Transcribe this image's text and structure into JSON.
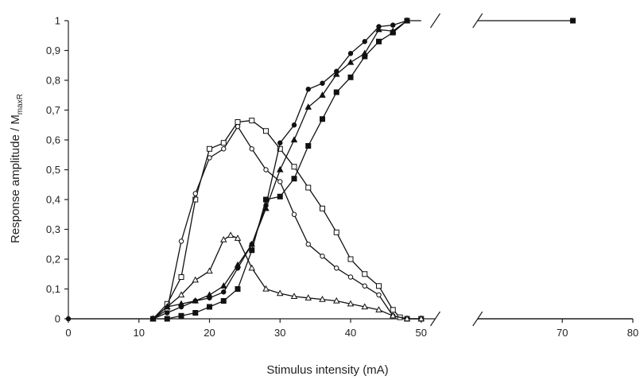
{
  "chart_data": {
    "type": "line",
    "xlabel": "Stimulus intensity (mA)",
    "ylabel_main": "Response amplitude / M",
    "ylabel_sub": "maxR",
    "x_ticks": [
      "0",
      "10",
      "20",
      "30",
      "40",
      "50",
      "70",
      "80"
    ],
    "y_ticks": [
      "0",
      "0,1",
      "0,2",
      "0,3",
      "0,4",
      "0,5",
      "0,6",
      "0,7",
      "0,8",
      "0,9",
      "1"
    ],
    "xlim": [
      0,
      80
    ],
    "ylim": [
      0,
      1
    ],
    "axis_break": [
      52,
      58
    ],
    "grid": false,
    "series": [
      {
        "marker": "open-square",
        "points": [
          [
            12,
            0
          ],
          [
            14,
            0.05
          ],
          [
            16,
            0.14
          ],
          [
            18,
            0.4
          ],
          [
            20,
            0.57
          ],
          [
            22,
            0.59
          ],
          [
            24,
            0.66
          ],
          [
            26,
            0.665
          ],
          [
            28,
            0.63
          ],
          [
            30,
            0.57
          ],
          [
            32,
            0.51
          ],
          [
            34,
            0.44
          ],
          [
            36,
            0.37
          ],
          [
            38,
            0.29
          ],
          [
            40,
            0.2
          ],
          [
            42,
            0.15
          ],
          [
            44,
            0.11
          ],
          [
            46,
            0.03
          ],
          [
            47,
            0.005
          ],
          [
            48,
            0
          ],
          [
            50,
            0
          ]
        ]
      },
      {
        "marker": "open-circle",
        "points": [
          [
            12,
            0
          ],
          [
            14,
            0.03
          ],
          [
            16,
            0.26
          ],
          [
            18,
            0.42
          ],
          [
            20,
            0.54
          ],
          [
            22,
            0.57
          ],
          [
            24,
            0.645
          ],
          [
            26,
            0.57
          ],
          [
            28,
            0.5
          ],
          [
            30,
            0.46
          ],
          [
            32,
            0.35
          ],
          [
            34,
            0.25
          ],
          [
            36,
            0.21
          ],
          [
            38,
            0.17
          ],
          [
            40,
            0.14
          ],
          [
            42,
            0.11
          ],
          [
            44,
            0.08
          ],
          [
            46,
            0.01
          ],
          [
            48,
            0
          ],
          [
            50,
            0
          ]
        ]
      },
      {
        "marker": "open-triangle",
        "points": [
          [
            12,
            0
          ],
          [
            14,
            0.04
          ],
          [
            16,
            0.08
          ],
          [
            18,
            0.13
          ],
          [
            20,
            0.16
          ],
          [
            22,
            0.265
          ],
          [
            23,
            0.28
          ],
          [
            24,
            0.27
          ],
          [
            26,
            0.17
          ],
          [
            28,
            0.1
          ],
          [
            30,
            0.085
          ],
          [
            32,
            0.075
          ],
          [
            34,
            0.07
          ],
          [
            36,
            0.065
          ],
          [
            38,
            0.06
          ],
          [
            40,
            0.05
          ],
          [
            42,
            0.04
          ],
          [
            44,
            0.03
          ],
          [
            46,
            0.01
          ],
          [
            48,
            0
          ],
          [
            50,
            0
          ]
        ]
      },
      {
        "marker": "filled-circle",
        "points": [
          [
            12,
            0
          ],
          [
            14,
            0.02
          ],
          [
            16,
            0.04
          ],
          [
            18,
            0.06
          ],
          [
            20,
            0.07
          ],
          [
            22,
            0.09
          ],
          [
            24,
            0.17
          ],
          [
            26,
            0.25
          ],
          [
            28,
            0.38
          ],
          [
            30,
            0.59
          ],
          [
            32,
            0.65
          ],
          [
            34,
            0.77
          ],
          [
            36,
            0.79
          ],
          [
            38,
            0.83
          ],
          [
            40,
            0.89
          ],
          [
            42,
            0.93
          ],
          [
            44,
            0.98
          ],
          [
            46,
            0.985
          ],
          [
            48,
            1
          ]
        ]
      },
      {
        "marker": "filled-triangle",
        "points": [
          [
            12,
            0
          ],
          [
            14,
            0.04
          ],
          [
            16,
            0.05
          ],
          [
            18,
            0.06
          ],
          [
            20,
            0.08
          ],
          [
            22,
            0.11
          ],
          [
            24,
            0.18
          ],
          [
            26,
            0.25
          ],
          [
            28,
            0.37
          ],
          [
            30,
            0.5
          ],
          [
            32,
            0.6
          ],
          [
            34,
            0.71
          ],
          [
            36,
            0.75
          ],
          [
            38,
            0.82
          ],
          [
            40,
            0.86
          ],
          [
            42,
            0.89
          ],
          [
            44,
            0.97
          ],
          [
            46,
            0.965
          ],
          [
            48,
            1
          ]
        ]
      },
      {
        "marker": "filled-square",
        "points": [
          [
            12,
            0
          ],
          [
            14,
            0
          ],
          [
            16,
            0.01
          ],
          [
            18,
            0.02
          ],
          [
            20,
            0.04
          ],
          [
            22,
            0.06
          ],
          [
            24,
            0.1
          ],
          [
            26,
            0.23
          ],
          [
            28,
            0.4
          ],
          [
            30,
            0.41
          ],
          [
            32,
            0.47
          ],
          [
            34,
            0.58
          ],
          [
            36,
            0.67
          ],
          [
            38,
            0.76
          ],
          [
            40,
            0.81
          ],
          [
            42,
            0.88
          ],
          [
            44,
            0.93
          ],
          [
            46,
            0.96
          ],
          [
            48,
            1
          ]
        ]
      }
    ],
    "plateau": [
      [
        48,
        1
      ],
      [
        50,
        1
      ]
    ],
    "plateau_after_break": [
      [
        58,
        1
      ],
      [
        71.5,
        1
      ]
    ],
    "baseline_after_break": [
      [
        58,
        0
      ],
      [
        80,
        0
      ]
    ]
  }
}
